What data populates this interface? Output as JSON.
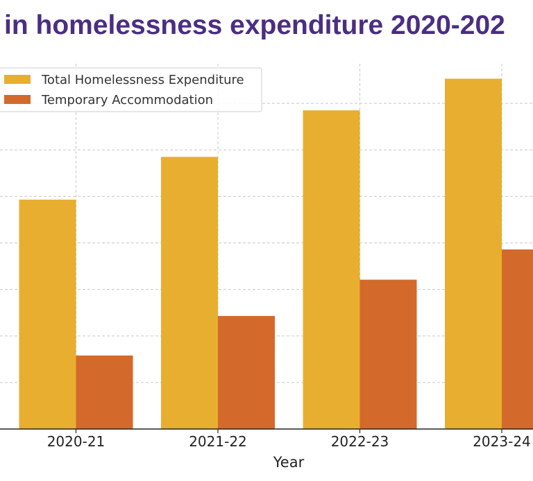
{
  "chart_data": {
    "type": "bar",
    "title": "in homelessness expenditure 2020-202",
    "xlabel": "Year",
    "ylabel": "",
    "categories": [
      "2020-21",
      "2021-22",
      "2022-23",
      "2023-24"
    ],
    "series": [
      {
        "name": "Total Homelessness Expenditure",
        "values": [
          49.3,
          58.5,
          68.5,
          75.3
        ],
        "color": "#E8AE30"
      },
      {
        "name": "Temporary Accommodation",
        "values": [
          15.8,
          24.3,
          32.1,
          38.6
        ],
        "color": "#D4692C"
      }
    ],
    "ylim": [
      0,
      80
    ],
    "grid": true,
    "legend_position": "top-left",
    "title_color": "#4B2E83"
  }
}
